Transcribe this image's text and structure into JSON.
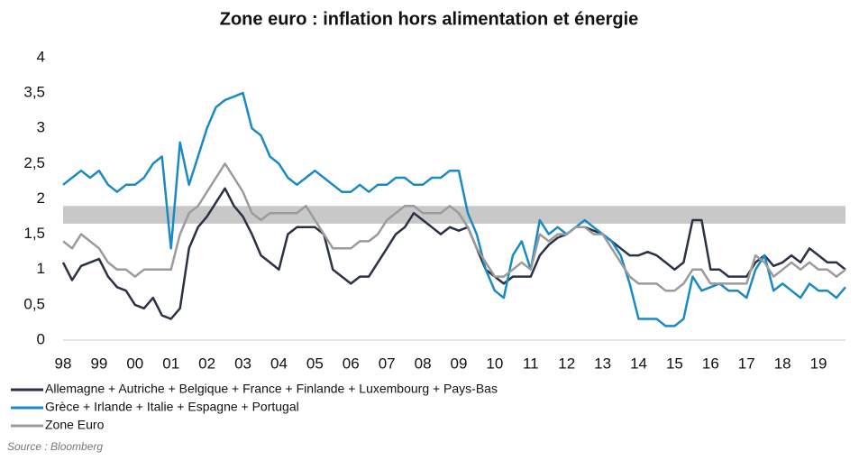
{
  "chart_data": {
    "type": "line",
    "title": "Zone euro : inflation hors alimentation et énergie",
    "source": "Source : Bloomberg",
    "x": [
      1998,
      1998.25,
      1998.5,
      1998.75,
      1999,
      1999.25,
      1999.5,
      1999.75,
      2000,
      2000.25,
      2000.5,
      2000.75,
      2001,
      2001.25,
      2001.5,
      2001.75,
      2002,
      2002.25,
      2002.5,
      2002.75,
      2003,
      2003.25,
      2003.5,
      2003.75,
      2004,
      2004.25,
      2004.5,
      2004.75,
      2005,
      2005.25,
      2005.5,
      2005.75,
      2006,
      2006.25,
      2006.5,
      2006.75,
      2007,
      2007.25,
      2007.5,
      2007.75,
      2008,
      2008.25,
      2008.5,
      2008.75,
      2009,
      2009.25,
      2009.5,
      2009.75,
      2010,
      2010.25,
      2010.5,
      2010.75,
      2011,
      2011.25,
      2011.5,
      2011.75,
      2012,
      2012.25,
      2012.5,
      2012.75,
      2013,
      2013.25,
      2013.5,
      2013.75,
      2014,
      2014.25,
      2014.5,
      2014.75,
      2015,
      2015.25,
      2015.5,
      2015.75,
      2016,
      2016.25,
      2016.5,
      2016.75,
      2017,
      2017.25,
      2017.5,
      2017.75,
      2018,
      2018.25,
      2018.5,
      2018.75,
      2019,
      2019.25,
      2019.5,
      2019.75
    ],
    "series": [
      {
        "name": "Allemagne + Autriche + Belgique + France + Finlande + Luxembourg + Pays-Bas",
        "color": "#2b3147",
        "values": [
          1.1,
          0.85,
          1.05,
          1.1,
          1.15,
          0.9,
          0.75,
          0.7,
          0.5,
          0.45,
          0.6,
          0.35,
          0.3,
          0.45,
          1.3,
          1.6,
          1.75,
          1.95,
          2.15,
          1.9,
          1.75,
          1.5,
          1.2,
          1.1,
          1.0,
          1.5,
          1.6,
          1.6,
          1.6,
          1.5,
          1.0,
          0.9,
          0.8,
          0.9,
          0.9,
          1.1,
          1.3,
          1.5,
          1.6,
          1.8,
          1.7,
          1.6,
          1.5,
          1.6,
          1.55,
          1.6,
          1.3,
          1.0,
          0.9,
          0.8,
          0.9,
          0.9,
          0.9,
          1.2,
          1.35,
          1.45,
          1.5,
          1.6,
          1.6,
          1.55,
          1.5,
          1.4,
          1.3,
          1.2,
          1.2,
          1.25,
          1.2,
          1.1,
          1.0,
          1.1,
          1.7,
          1.7,
          1.0,
          1.0,
          0.9,
          0.9,
          0.9,
          1.1,
          1.2,
          1.05,
          1.1,
          1.2,
          1.1,
          1.3,
          1.2,
          1.1,
          1.1,
          1.0
        ]
      },
      {
        "name": "Grèce + Irlande + Italie + Espagne + Portugal",
        "color": "#1a8ac6",
        "values": [
          2.2,
          2.3,
          2.4,
          2.3,
          2.4,
          2.2,
          2.1,
          2.2,
          2.2,
          2.3,
          2.5,
          2.6,
          1.3,
          2.8,
          2.2,
          2.6,
          3.0,
          3.3,
          3.4,
          3.45,
          3.5,
          3.0,
          2.9,
          2.6,
          2.5,
          2.3,
          2.2,
          2.3,
          2.4,
          2.3,
          2.2,
          2.1,
          2.1,
          2.2,
          2.1,
          2.2,
          2.2,
          2.3,
          2.3,
          2.2,
          2.2,
          2.3,
          2.3,
          2.4,
          2.4,
          1.8,
          1.5,
          1.0,
          0.7,
          0.6,
          1.2,
          1.4,
          1.0,
          1.7,
          1.5,
          1.6,
          1.5,
          1.6,
          1.7,
          1.6,
          1.5,
          1.4,
          1.2,
          0.8,
          0.3,
          0.3,
          0.3,
          0.2,
          0.2,
          0.3,
          0.9,
          0.7,
          0.75,
          0.8,
          0.7,
          0.7,
          0.6,
          1.0,
          1.2,
          0.7,
          0.8,
          0.7,
          0.6,
          0.8,
          0.7,
          0.7,
          0.6,
          0.75
        ]
      },
      {
        "name": "Zone Euro",
        "color": "#9b9b9b",
        "values": [
          1.4,
          1.3,
          1.5,
          1.4,
          1.3,
          1.1,
          1.0,
          1.0,
          0.9,
          1.0,
          1.0,
          1.0,
          1.0,
          1.5,
          1.8,
          1.9,
          2.1,
          2.3,
          2.5,
          2.3,
          2.1,
          1.8,
          1.7,
          1.8,
          1.8,
          1.8,
          1.8,
          1.9,
          1.7,
          1.5,
          1.3,
          1.3,
          1.3,
          1.4,
          1.4,
          1.5,
          1.7,
          1.8,
          1.9,
          1.9,
          1.8,
          1.8,
          1.8,
          1.9,
          1.8,
          1.6,
          1.3,
          1.1,
          0.9,
          0.9,
          1.0,
          1.1,
          1.0,
          1.5,
          1.4,
          1.5,
          1.5,
          1.6,
          1.6,
          1.5,
          1.5,
          1.3,
          1.1,
          0.9,
          0.8,
          0.8,
          0.8,
          0.7,
          0.7,
          0.8,
          1.0,
          1.0,
          0.8,
          0.8,
          0.8,
          0.8,
          0.8,
          1.2,
          1.1,
          0.9,
          1.0,
          1.1,
          1.0,
          1.1,
          1.0,
          1.0,
          0.9,
          1.0
        ]
      }
    ],
    "shaded_band": [
      1.65,
      1.9
    ],
    "band_color": "#c8c8c8",
    "xlim": [
      1998,
      2019.75
    ],
    "xticks": [
      {
        "value": 1998,
        "label": "98"
      },
      {
        "value": 1999,
        "label": "99"
      },
      {
        "value": 2000,
        "label": "00"
      },
      {
        "value": 2001,
        "label": "01"
      },
      {
        "value": 2002,
        "label": "02"
      },
      {
        "value": 2003,
        "label": "03"
      },
      {
        "value": 2004,
        "label": "04"
      },
      {
        "value": 2005,
        "label": "05"
      },
      {
        "value": 2006,
        "label": "06"
      },
      {
        "value": 2007,
        "label": "07"
      },
      {
        "value": 2008,
        "label": "08"
      },
      {
        "value": 2009,
        "label": "09"
      },
      {
        "value": 2010,
        "label": "10"
      },
      {
        "value": 2011,
        "label": "11"
      },
      {
        "value": 2012,
        "label": "12"
      },
      {
        "value": 2013,
        "label": "13"
      },
      {
        "value": 2014,
        "label": "14"
      },
      {
        "value": 2015,
        "label": "15"
      },
      {
        "value": 2016,
        "label": "16"
      },
      {
        "value": 2017,
        "label": "17"
      },
      {
        "value": 2018,
        "label": "18"
      },
      {
        "value": 2019,
        "label": "19"
      }
    ],
    "ylim": [
      0,
      4
    ],
    "yticks": [
      0,
      {
        "value": 0.5,
        "label": "0,5"
      },
      1,
      {
        "value": 1.5,
        "label": "1,5"
      },
      2,
      {
        "value": 2.5,
        "label": "2,5"
      },
      3,
      {
        "value": 3.5,
        "label": "3,5"
      },
      4
    ]
  }
}
